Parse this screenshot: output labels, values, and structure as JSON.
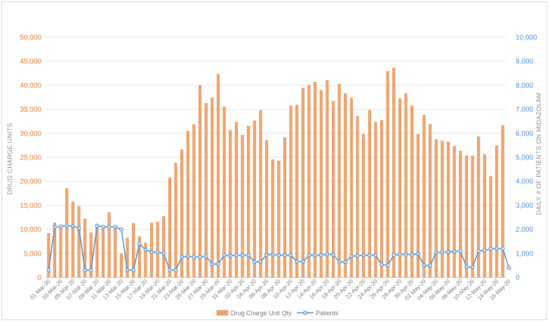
{
  "chart_data": {
    "type": "bar",
    "series": [
      {
        "name": "Drug Charge Unit Qty",
        "type": "bar",
        "axis": "left",
        "color": "#f0a46c",
        "values": [
          9200,
          11400,
          10800,
          18500,
          15700,
          14800,
          12200,
          9300,
          10600,
          10700,
          13500,
          10400,
          4900,
          8200,
          11200,
          8500,
          7200,
          11300,
          11500,
          12700,
          20700,
          23800,
          26600,
          30400,
          31800,
          40000,
          36200,
          37400,
          42300,
          35500,
          30600,
          32300,
          29600,
          31500,
          32600,
          34800,
          28500,
          24500,
          24200,
          29100,
          35700,
          35900,
          39400,
          40000,
          40600,
          38900,
          41000,
          36700,
          40200,
          38300,
          37300,
          33500,
          29800,
          34800,
          32300,
          32700,
          42900,
          43600,
          37200,
          38300,
          35700,
          29800,
          33800,
          31900,
          28700,
          28400,
          28200,
          27300,
          26300,
          25300,
          25300,
          29300,
          25600,
          21000,
          27400,
          31600
        ]
      },
      {
        "name": "Patients",
        "type": "line",
        "axis": "right",
        "color": "#4e8fcb",
        "values": [
          300,
          2100,
          2120,
          2150,
          2130,
          2050,
          300,
          300,
          2150,
          2100,
          2100,
          2100,
          2000,
          300,
          300,
          1400,
          1150,
          1050,
          1050,
          1000,
          300,
          300,
          850,
          880,
          850,
          850,
          880,
          550,
          560,
          920,
          900,
          920,
          920,
          920,
          650,
          650,
          940,
          950,
          920,
          920,
          920,
          660,
          650,
          920,
          920,
          920,
          960,
          940,
          650,
          640,
          880,
          900,
          920,
          920,
          920,
          530,
          500,
          930,
          950,
          950,
          950,
          980,
          500,
          490,
          1040,
          1050,
          1060,
          1080,
          1100,
          440,
          420,
          1100,
          1130,
          1180,
          1200,
          1200,
          400
        ]
      }
    ],
    "x_tick_labels": [
      "01-Mar-20",
      "03-Mar-20",
      "05-Mar-20",
      "07-Mar-20",
      "09-Mar-20",
      "11-Mar-20",
      "13-Mar-20",
      "15-Mar-20",
      "17-Mar-20",
      "19-Mar-20",
      "21-Mar-20",
      "23-Mar-20",
      "25-Mar-20",
      "27-Mar-20",
      "29-Mar-20",
      "31-Mar-20",
      "02-Apr-20",
      "04-Apr-20",
      "06-Apr-20",
      "08-Apr-20",
      "10-Apr-20",
      "12-Apr-20",
      "14-Apr-20",
      "16-Apr-20",
      "18-Apr-20",
      "20-Apr-20",
      "22-Apr-20",
      "24-Apr-20",
      "26-Apr-20",
      "28-Apr-20",
      "30-Apr-20",
      "02-May-20",
      "04-May-20",
      "06-May-20",
      "08-May-20",
      "10-May-20",
      "12-May-20",
      "14-May-20",
      "16-May-20"
    ],
    "x_range": [
      "01-Mar-20",
      "16-May-20"
    ],
    "y_left": {
      "label": "DRUG CHARGE UNITS",
      "ylim": [
        0,
        50000
      ],
      "ticks": [
        "0",
        "5,000",
        "10,000",
        "15,000",
        "20,000",
        "25,000",
        "30,000",
        "35,000",
        "40,000",
        "45,000",
        "50,000"
      ]
    },
    "y_right": {
      "label": "DAILY # OF PATIENTS ON MIDAZOLAM",
      "ylim": [
        0,
        10000
      ],
      "ticks": [
        "0",
        "1,000",
        "2,000",
        "3,000",
        "4,000",
        "5,000",
        "6,000",
        "7,000",
        "8,000",
        "9,000",
        "10,000"
      ]
    },
    "grid": true,
    "legend_position": "bottom"
  },
  "legend": {
    "bar_label": "Drug Charge Unit Qty",
    "line_label": "Patients"
  }
}
